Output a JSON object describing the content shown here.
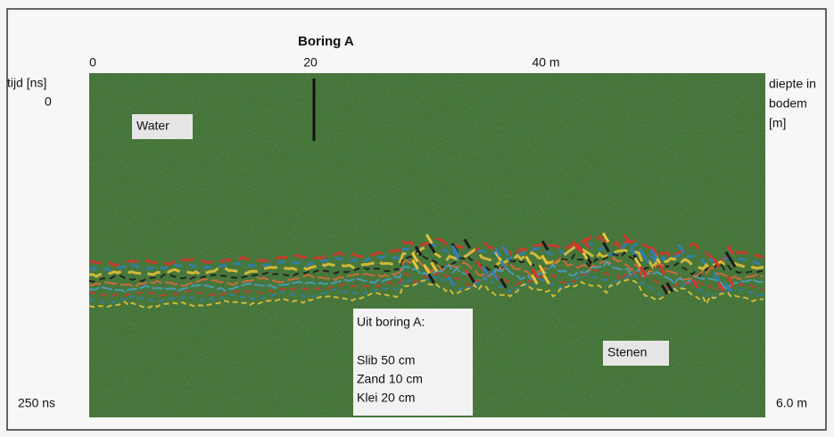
{
  "figure": {
    "borehole_label": "Boring A",
    "x_labels": [
      "0",
      "20",
      "40 m"
    ],
    "left_axis": {
      "title": "tijd [ns]",
      "top": "0",
      "bottom": "250 ns"
    },
    "right_axis": {
      "title_lines": [
        "diepte in",
        "bodem",
        "[m]"
      ],
      "bottom": "6.0 m"
    },
    "annotations": {
      "water": "Water",
      "boring": [
        "Uit boring A:",
        "Slib 50 cm",
        "Zand 10 cm",
        "Klei 20 cm"
      ],
      "stones": "Stenen"
    }
  }
}
